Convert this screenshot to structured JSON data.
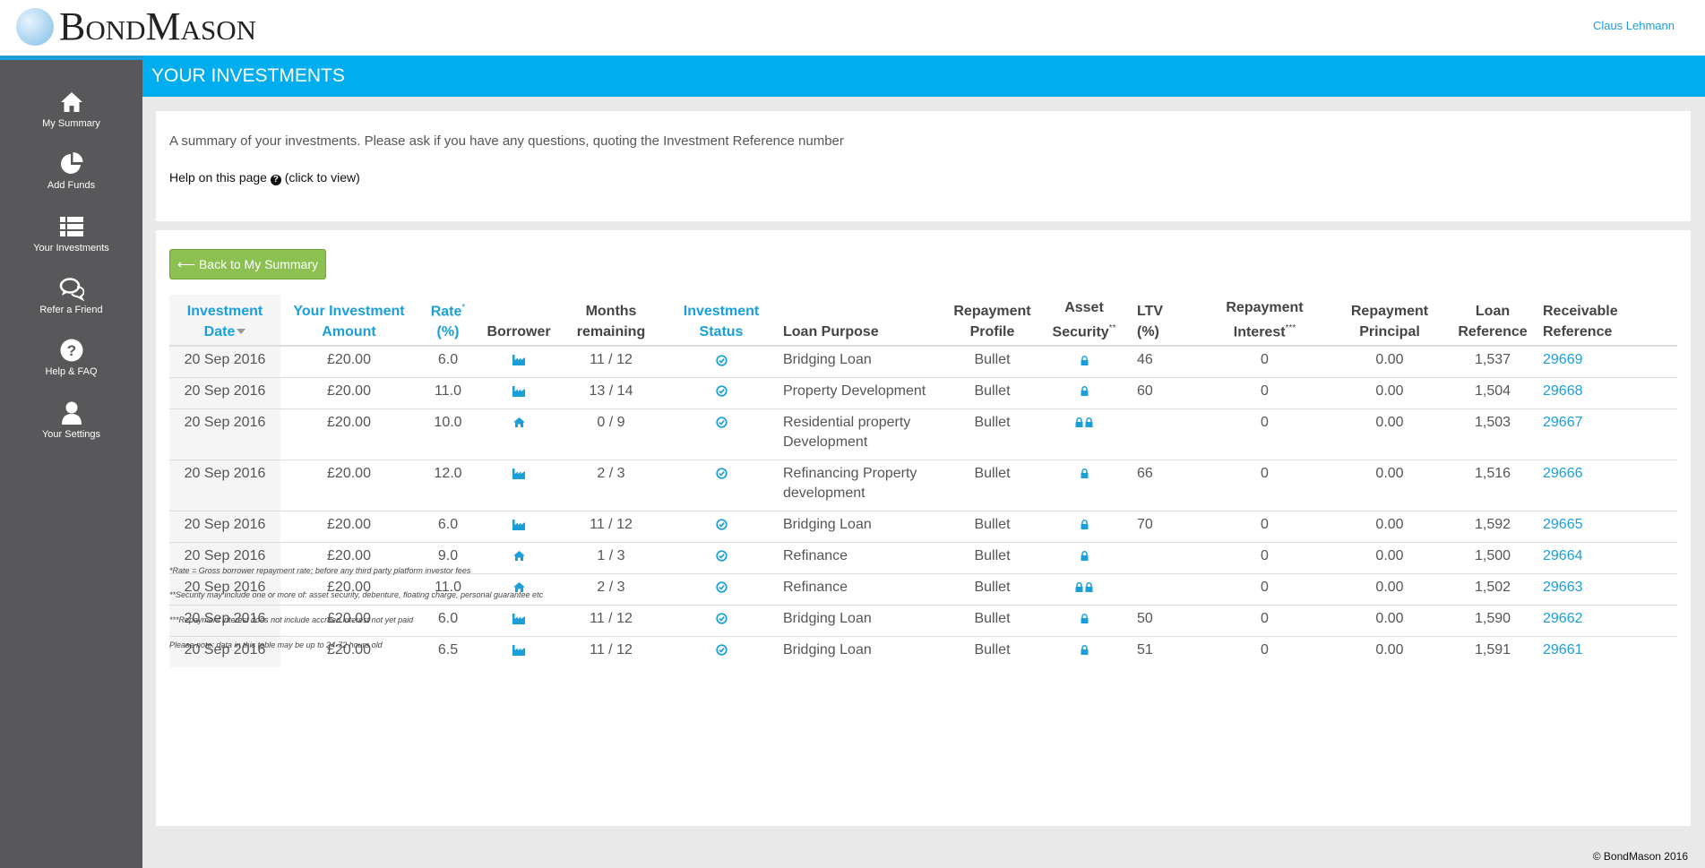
{
  "header": {
    "logo_text": "BondMason",
    "user_name": "Claus Lehmann"
  },
  "sidebar": {
    "items": [
      {
        "label": "My Summary",
        "icon": "home-icon"
      },
      {
        "label": "Add Funds",
        "icon": "pie-chart-icon"
      },
      {
        "label": "Your Investments",
        "icon": "list-icon"
      },
      {
        "label": "Refer a Friend",
        "icon": "chat-icon"
      },
      {
        "label": "Help & FAQ",
        "icon": "question-icon"
      },
      {
        "label": "Your Settings",
        "icon": "user-icon"
      }
    ]
  },
  "page": {
    "title": "YOUR INVESTMENTS",
    "intro": "A summary of your investments. Please ask if you have any questions, quoting the Investment Reference number",
    "help_prefix": "Help on this page",
    "help_suffix": "(click to view)",
    "back_button": "⟵ Back to My Summary"
  },
  "table": {
    "headers": {
      "date_line1": "Investment",
      "date_line2": "Date",
      "amount_line1": "Your Investment",
      "amount_line2": "Amount",
      "rate_line1": "Rate",
      "rate_sup": "*",
      "rate_line2": "(%)",
      "borrower": "Borrower",
      "months_line1": "Months",
      "months_line2": "remaining",
      "status_line1": "Investment",
      "status_line2": "Status",
      "purpose": "Loan Purpose",
      "profile_line1": "Repayment",
      "profile_line2": "Profile",
      "security_line1": "Asset",
      "security_line2": "Security",
      "security_sup": "**",
      "ltv_line1": "LTV",
      "ltv_line2": "(%)",
      "interest_line1": "Repayment",
      "interest_line2": "Interest",
      "interest_sup": "***",
      "principal_line1": "Repayment",
      "principal_line2": "Principal",
      "loanref_line1": "Loan",
      "loanref_line2": "Reference",
      "recref_line1": "Receivable",
      "recref_line2": "Reference"
    },
    "rows": [
      {
        "date": "20 Sep 2016",
        "amount": "£20.00",
        "rate": "6.0",
        "borrower_icon": "factory-icon",
        "months": "11 / 12",
        "status_icon": "check-circle-icon",
        "purpose": "Bridging Loan",
        "profile": "Bullet",
        "security_locks": 1,
        "ltv": "46",
        "interest": "0",
        "principal": "0.00",
        "loan_ref": "1,537",
        "rec_ref": "29669"
      },
      {
        "date": "20 Sep 2016",
        "amount": "£20.00",
        "rate": "11.0",
        "borrower_icon": "factory-icon",
        "months": "13 / 14",
        "status_icon": "check-circle-icon",
        "purpose": "Property Development",
        "profile": "Bullet",
        "security_locks": 1,
        "ltv": "60",
        "interest": "0",
        "principal": "0.00",
        "loan_ref": "1,504",
        "rec_ref": "29668"
      },
      {
        "date": "20 Sep 2016",
        "amount": "£20.00",
        "rate": "10.0",
        "borrower_icon": "home-icon",
        "months": "0 / 9",
        "status_icon": "check-circle-icon",
        "purpose": "Residential property Development",
        "profile": "Bullet",
        "security_locks": 2,
        "ltv": "",
        "interest": "0",
        "principal": "0.00",
        "loan_ref": "1,503",
        "rec_ref": "29667"
      },
      {
        "date": "20 Sep 2016",
        "amount": "£20.00",
        "rate": "12.0",
        "borrower_icon": "factory-icon",
        "months": "2 / 3",
        "status_icon": "check-circle-icon",
        "purpose": "Refinancing Property development",
        "profile": "Bullet",
        "security_locks": 1,
        "ltv": "66",
        "interest": "0",
        "principal": "0.00",
        "loan_ref": "1,516",
        "rec_ref": "29666"
      },
      {
        "date": "20 Sep 2016",
        "amount": "£20.00",
        "rate": "6.0",
        "borrower_icon": "factory-icon",
        "months": "11 / 12",
        "status_icon": "check-circle-icon",
        "purpose": "Bridging Loan",
        "profile": "Bullet",
        "security_locks": 1,
        "ltv": "70",
        "interest": "0",
        "principal": "0.00",
        "loan_ref": "1,592",
        "rec_ref": "29665"
      },
      {
        "date": "20 Sep 2016",
        "amount": "£20.00",
        "rate": "9.0",
        "borrower_icon": "home-icon",
        "months": "1 / 3",
        "status_icon": "check-circle-icon",
        "purpose": "Refinance",
        "profile": "Bullet",
        "security_locks": 1,
        "ltv": "",
        "interest": "0",
        "principal": "0.00",
        "loan_ref": "1,500",
        "rec_ref": "29664"
      },
      {
        "date": "20 Sep 2016",
        "amount": "£20.00",
        "rate": "11.0",
        "borrower_icon": "home-icon",
        "months": "2 / 3",
        "status_icon": "check-circle-icon",
        "purpose": "Refinance",
        "profile": "Bullet",
        "security_locks": 2,
        "ltv": "",
        "interest": "0",
        "principal": "0.00",
        "loan_ref": "1,502",
        "rec_ref": "29663"
      },
      {
        "date": "20 Sep 2016",
        "amount": "£20.00",
        "rate": "6.0",
        "borrower_icon": "factory-icon",
        "months": "11 / 12",
        "status_icon": "check-circle-icon",
        "purpose": "Bridging Loan",
        "profile": "Bullet",
        "security_locks": 1,
        "ltv": "50",
        "interest": "0",
        "principal": "0.00",
        "loan_ref": "1,590",
        "rec_ref": "29662"
      },
      {
        "date": "20 Sep 2016",
        "amount": "£20.00",
        "rate": "6.5",
        "borrower_icon": "factory-icon",
        "months": "11 / 12",
        "status_icon": "check-circle-icon",
        "purpose": "Bridging Loan",
        "profile": "Bullet",
        "security_locks": 1,
        "ltv": "51",
        "interest": "0",
        "principal": "0.00",
        "loan_ref": "1,591",
        "rec_ref": "29661"
      }
    ]
  },
  "notes": [
    "*Rate = Gross borrower repayment rate; before any third party platform investor fees",
    "**Security may include one or more of: asset security, debenture, floating charge, personal guarantee etc",
    "***Repayment interest does not include accrued interest not yet paid",
    "Please note: data in this table may be up to 24-72 hours old"
  ],
  "footer": {
    "copyright": "© BondMason 2016"
  },
  "colors": {
    "accent": "#00aeef",
    "link": "#1a9fd9",
    "sidebar": "#58585a",
    "button": "#8cc152"
  }
}
